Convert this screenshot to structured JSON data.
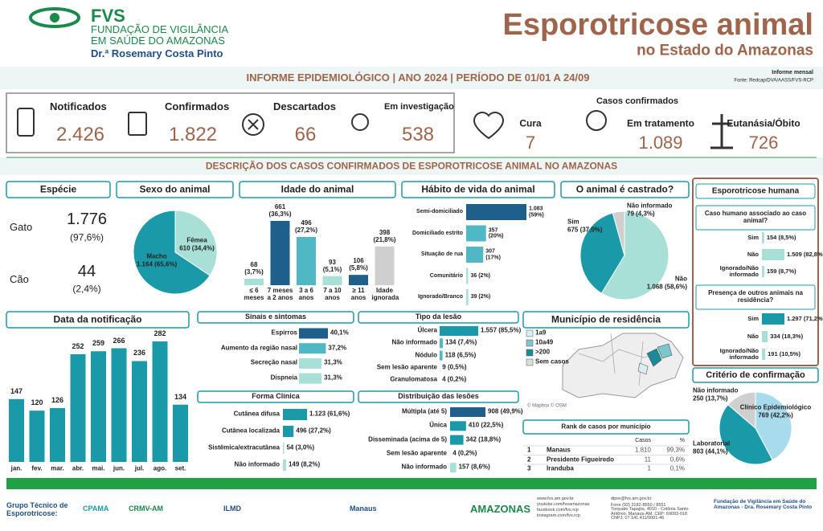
{
  "header": {
    "org": "FVS",
    "org_line1": "FUNDAÇÃO DE VIGILÂNCIA",
    "org_line2": "EM SAÚDE DO AMAZONAS",
    "org_line3": "Dr.ª Rosemary Costa Pinto",
    "title": "Esporotricose animal",
    "subtitle": "no Estado do Amazonas"
  },
  "banner": {
    "text": "INFORME EPIDEMIOLÓGICO | ANO 2024 | PERÍODO DE 01/01 A 24/09",
    "report_type": "Informe mensal",
    "source": "Fonte: Redcap/DVA/AASS/FVS-RCP"
  },
  "kpis": [
    {
      "label": "Notificados",
      "value": "2.426"
    },
    {
      "label": "Confirmados",
      "value": "1.822"
    },
    {
      "label": "Descartados",
      "value": "66"
    },
    {
      "label": "Em investigação",
      "value": "538"
    }
  ],
  "confirmed": {
    "title": "Casos confirmados",
    "items": [
      {
        "label": "Cura",
        "value": "7"
      },
      {
        "label": "Em tratamento",
        "value": "1.089"
      },
      {
        "label": "Eutanásia/Óbito",
        "value": "726"
      }
    ]
  },
  "section_title": "DESCRIÇÃO DOS CASOS CONFIRMADOS DE ESPOROTRICOSE ANIMAL NO AMAZONAS",
  "species": {
    "title": "Espécie",
    "items": [
      {
        "label": "Gato",
        "value": "1.776",
        "pct": "(97,6%)"
      },
      {
        "label": "Cão",
        "value": "44",
        "pct": "(2,4%)"
      }
    ]
  },
  "chart_data": [
    {
      "type": "pie",
      "title": "Sexo do animal",
      "categories": [
        "Macho",
        "Fêmea"
      ],
      "values": [
        1164,
        610
      ],
      "value_labels": [
        "1.164 (65,6%)",
        "610 (34,4%)"
      ],
      "colors": [
        "#1a9aa8",
        "#a8e0d8"
      ]
    },
    {
      "type": "bar",
      "title": "Idade do animal",
      "categories": [
        "≤ 6 meses",
        "7 meses a 2 anos",
        "3 a 6 anos",
        "7 a 10 anos",
        "≥ 11 anos",
        "Idade ignorada"
      ],
      "values": [
        68,
        661,
        496,
        93,
        106,
        398
      ],
      "value_labels": [
        "68 (3,7%)",
        "661 (36,3%)",
        "496 (27,2%)",
        "93 (5,1%)",
        "106 (5,8%)",
        "398 (21,8%)"
      ],
      "colors": [
        "#a8e0d8",
        "#1f5f8b",
        "#4fb8c4",
        "#a8e0d8",
        "#1f5f8b",
        "#cfcfcf"
      ]
    },
    {
      "type": "hbar",
      "title": "Hábito de vida do animal",
      "categories": [
        "Semi-domiciliado",
        "Domiciliado estrito",
        "Situação de rua",
        "Comunitário",
        "Ignorado/Branco"
      ],
      "values": [
        1083,
        357,
        307,
        36,
        39
      ],
      "value_labels": [
        "1.083 (59%)",
        "357 (20%)",
        "307 (17%)",
        "36 (2%)",
        "39 (2%)"
      ],
      "colors": [
        "#1f5f8b",
        "#4fb8c4",
        "#4fb8c4",
        "#a8e0d8",
        "#a8e0d8"
      ]
    },
    {
      "type": "pie",
      "title": "O animal é castrado?",
      "categories": [
        "Sim",
        "Não",
        "Não informado"
      ],
      "values": [
        675,
        1068,
        79
      ],
      "value_labels": [
        "675 (37,0%)",
        "1.068 (58,6%)",
        "79 (4,3%)"
      ],
      "colors": [
        "#1a9aa8",
        "#a8e0d8",
        "#cfcfcf"
      ]
    },
    {
      "type": "bar",
      "title": "Data da notificação",
      "categories": [
        "jan.",
        "fev.",
        "mar.",
        "abr.",
        "mai.",
        "jun.",
        "jul.",
        "ago.",
        "set."
      ],
      "values": [
        147,
        120,
        126,
        252,
        259,
        266,
        236,
        282,
        134
      ],
      "color": "#1a9aa8"
    },
    {
      "type": "hbar",
      "title": "Sinais e sintomas",
      "categories": [
        "Espirros",
        "Aumento da região nasal",
        "Secreção nasal",
        "Dispneia"
      ],
      "values": [
        40.1,
        37.2,
        31.3,
        31.3
      ],
      "value_labels": [
        "40,1%",
        "37,2%",
        "31,3%",
        "31,3%"
      ],
      "colors": [
        "#1f5f8b",
        "#4fb8c4",
        "#a8e0d8",
        "#a8e0d8"
      ]
    },
    {
      "type": "hbar",
      "title": "Forma Clínica",
      "categories": [
        "Cutânea difusa",
        "Cutânea localizada",
        "Sistêmica/extracutânea",
        "Não informado"
      ],
      "values": [
        1123,
        496,
        54,
        149
      ],
      "value_labels": [
        "1.123 (61,6%)",
        "496 (27,2%)",
        "54 (3,0%)",
        "149 (8,2%)"
      ],
      "colors": [
        "#1a9aa8",
        "#1a9aa8",
        "#a8e0d8",
        "#a8e0d8"
      ]
    },
    {
      "type": "hbar",
      "title": "Tipo da lesão",
      "categories": [
        "Úlcera",
        "Não informado",
        "Nódulo",
        "Sem lesão aparente",
        "Granulomatosa"
      ],
      "values": [
        1557,
        134,
        118,
        9,
        4
      ],
      "value_labels": [
        "1.557 (85,5%)",
        "134 (7,4%)",
        "118 (6,5%)",
        "9 (0,5%)",
        "4 (0,2%)"
      ],
      "colors": [
        "#1a9aa8",
        "#4fb8c4",
        "#4fb8c4",
        "#a8e0d8",
        "#a8e0d8"
      ]
    },
    {
      "type": "hbar",
      "title": "Distribuição das lesões",
      "categories": [
        "Múltipla (até 5)",
        "Única",
        "Disseminada (acima de 5)",
        "Sem lesão aparente",
        "Não informado"
      ],
      "values": [
        908,
        410,
        342,
        4,
        157
      ],
      "value_labels": [
        "908 (49,9%)",
        "410 (22,5%)",
        "342 (18,8%)",
        "4 (0,2%)",
        "157 (8,6%)"
      ],
      "colors": [
        "#1f5f8b",
        "#1a9aa8",
        "#1a9aa8",
        "#a8e0d8",
        "#a8e0d8"
      ]
    },
    {
      "type": "pie",
      "title": "Critério de confirmação",
      "categories": [
        "Clínico Epidemiológico",
        "Laboratorial",
        "Não informado"
      ],
      "values": [
        769,
        803,
        250
      ],
      "value_labels": [
        "769 (42,2%)",
        "803 (44,1%)",
        "250 (13,7%)"
      ],
      "colors": [
        "#a8dcec",
        "#1a9aa8",
        "#cfcfcf"
      ]
    }
  ],
  "human": {
    "title": "Esporotricose humana",
    "questions": [
      {
        "type": "hbar",
        "title": "Caso humano associado ao caso animal?",
        "categories": [
          "Sim",
          "Não",
          "Ignorado/Não informado"
        ],
        "values": [
          154,
          1509,
          159
        ],
        "value_labels": [
          "154 (8,5%)",
          "1.509 (82,8%)",
          "159 (8,7%)"
        ],
        "colors": [
          "#a8e0d8",
          "#a8e0d8",
          "#a8e0d8"
        ]
      },
      {
        "type": "hbar",
        "title": "Presença de outros animais na residência?",
        "categories": [
          "Sim",
          "Não",
          "Ignorado/Não informado"
        ],
        "values": [
          1297,
          334,
          191
        ],
        "value_labels": [
          "1.297 (71,2%)",
          "334 (18,3%)",
          "191 (10,5%)"
        ],
        "colors": [
          "#1a9aa8",
          "#a8e0d8",
          "#a8e0d8"
        ]
      }
    ]
  },
  "municipality": {
    "title": "Município de residência",
    "legend": [
      "1a9",
      "10a49",
      ">200",
      "Sem casos"
    ],
    "legend_colors": [
      "#d9eef0",
      "#7cc6cf",
      "#1a8a98",
      "#dddddd"
    ],
    "credit": "© Mapbox © OSM"
  },
  "rank": {
    "title": "Rank de casos por município",
    "headers": [
      "Casos",
      "%"
    ],
    "rows": [
      [
        "1",
        "Manaus",
        "1.810",
        "99,3%"
      ],
      [
        "2",
        "Presidente Figueiredo",
        "11",
        "0,6%"
      ],
      [
        "3",
        "Iranduba",
        "1",
        "0,1%"
      ]
    ]
  },
  "footer": {
    "group": "Grupo Técnico de Esporotricose:",
    "logos": [
      "CPAMA",
      "CRMV-AM",
      "ILMD",
      "Manaus",
      "AMAZONAS"
    ],
    "contacts": [
      "www.fvs.am.gov.br",
      "youtube.com/fvsamazonas",
      "facebook.com/fvs.rcp",
      "instagram.com/fvs.rcp"
    ],
    "address": [
      "dipre@fvs.am.gov.br",
      "Fone (92) 3182-8550 / 8551",
      "Torquato Tapajós, 4010 - Colônia Santo Antônio. Manaus-AM. CEP: 69093-018",
      "CNPJ: 07.141.411/0001-46"
    ],
    "institution": "Fundação de Vigilância em Saúde do Amazonas - Dra. Rosemary Costa Pinto"
  }
}
